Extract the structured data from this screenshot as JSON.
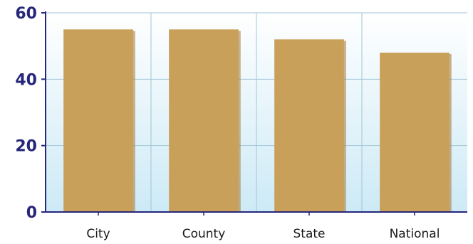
{
  "chart_data": {
    "type": "bar",
    "categories": [
      "City",
      "County",
      "State",
      "National"
    ],
    "values": [
      55,
      55,
      52,
      48
    ],
    "ylim": [
      0,
      60
    ],
    "yticks": [
      0,
      20,
      40,
      60
    ],
    "title": "",
    "xlabel": "",
    "ylabel": "",
    "grid": true,
    "bar_color": "#c9a05a",
    "bar_shadow_color": "#a98247",
    "background_gradient": [
      "#ffffff",
      "#cdeaf6"
    ],
    "grid_color": "#9fc6d6",
    "axis_color": "#26267a"
  }
}
